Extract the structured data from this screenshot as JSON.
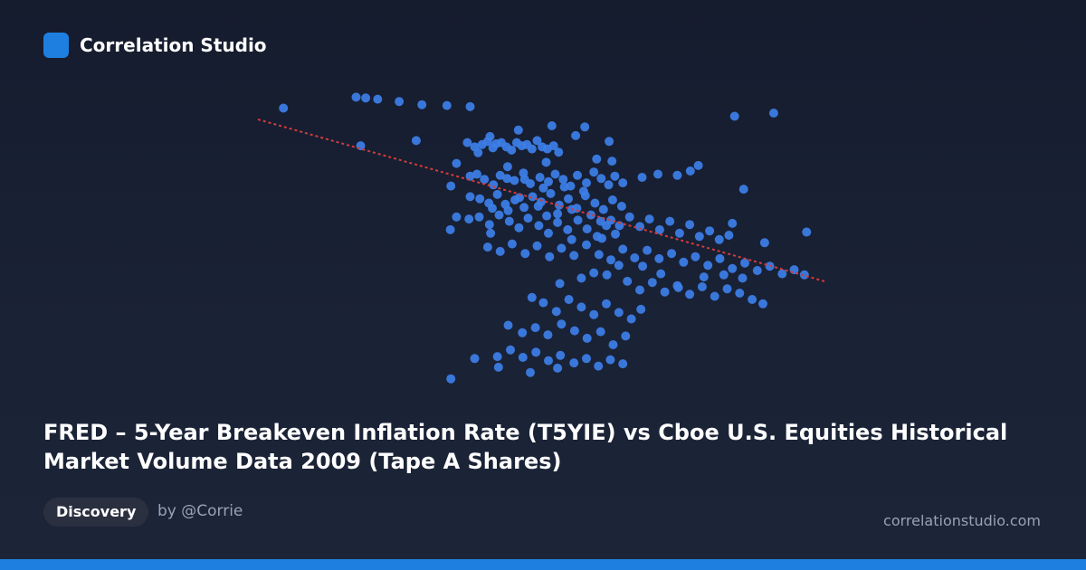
{
  "brand": {
    "name": "Correlation Studio",
    "logo_icon": "rounded-square-logo-icon"
  },
  "title": "FRED – 5-Year Breakeven Inflation Rate (T5YIE) vs Cboe U.S. Equities Historical Market Volume Data 2009 (Tape A Shares)",
  "badge": "Discovery",
  "author": "by @Corrie",
  "site": "correlationstudio.com",
  "colors": {
    "accent": "#1e7fe0",
    "point": "#3d7fe8",
    "trendline": "#d23c3c"
  },
  "chart_data": {
    "type": "scatter",
    "xlabel": "",
    "ylabel": "",
    "grid": false,
    "legend": "none",
    "xlim": [
      0,
      100
    ],
    "ylim": [
      0,
      100
    ],
    "trendline": {
      "style": "dotted",
      "x": [
        0,
        100
      ],
      "y": [
        90.0,
        34.0
      ]
    },
    "points": [
      [
        4.5,
        93.9
      ],
      [
        17.3,
        97.7
      ],
      [
        19.0,
        97.4
      ],
      [
        21.1,
        97.0
      ],
      [
        24.9,
        96.2
      ],
      [
        28.9,
        95.1
      ],
      [
        33.3,
        94.8
      ],
      [
        37.4,
        94.4
      ],
      [
        18.1,
        80.9
      ],
      [
        27.9,
        82.7
      ],
      [
        36.9,
        82.0
      ],
      [
        38.2,
        80.5
      ],
      [
        39.5,
        81.3
      ],
      [
        40.5,
        82.4
      ],
      [
        41.4,
        80.2
      ],
      [
        42.0,
        81.6
      ],
      [
        42.9,
        82.0
      ],
      [
        43.8,
        80.5
      ],
      [
        44.7,
        79.4
      ],
      [
        45.6,
        82.0
      ],
      [
        46.5,
        80.9
      ],
      [
        47.4,
        81.3
      ],
      [
        48.3,
        79.8
      ],
      [
        49.2,
        82.7
      ],
      [
        50.1,
        80.5
      ],
      [
        51.0,
        79.8
      ],
      [
        52.1,
        80.9
      ],
      [
        53.0,
        78.7
      ],
      [
        37.4,
        70.4
      ],
      [
        38.6,
        71.1
      ],
      [
        39.9,
        69.3
      ],
      [
        41.5,
        67.4
      ],
      [
        42.7,
        70.7
      ],
      [
        43.9,
        69.6
      ],
      [
        45.2,
        68.9
      ],
      [
        46.8,
        71.5
      ],
      [
        48.0,
        67.8
      ],
      [
        49.7,
        70.0
      ],
      [
        51.2,
        68.5
      ],
      [
        52.4,
        71.1
      ],
      [
        53.8,
        69.3
      ],
      [
        55.1,
        67.0
      ],
      [
        56.3,
        70.7
      ],
      [
        57.9,
        68.1
      ],
      [
        59.2,
        71.8
      ],
      [
        60.5,
        69.6
      ],
      [
        61.8,
        67.4
      ],
      [
        62.9,
        70.4
      ],
      [
        64.3,
        68.1
      ],
      [
        37.4,
        63.3
      ],
      [
        39.1,
        62.6
      ],
      [
        40.7,
        61.1
      ],
      [
        42.2,
        64.1
      ],
      [
        43.6,
        60.7
      ],
      [
        45.3,
        62.2
      ],
      [
        46.9,
        59.6
      ],
      [
        48.4,
        63.3
      ],
      [
        49.9,
        61.5
      ],
      [
        51.6,
        64.4
      ],
      [
        53.1,
        60.4
      ],
      [
        54.7,
        62.6
      ],
      [
        56.2,
        59.3
      ],
      [
        57.7,
        63.7
      ],
      [
        59.4,
        61.1
      ],
      [
        60.9,
        58.9
      ],
      [
        62.5,
        62.2
      ],
      [
        64.1,
        60.0
      ],
      [
        37.2,
        55.6
      ],
      [
        39.0,
        56.3
      ],
      [
        40.8,
        53.7
      ],
      [
        42.5,
        57.0
      ],
      [
        44.3,
        54.8
      ],
      [
        46.0,
        52.6
      ],
      [
        47.6,
        55.9
      ],
      [
        49.5,
        53.3
      ],
      [
        51.2,
        50.7
      ],
      [
        52.8,
        54.4
      ],
      [
        54.6,
        51.9
      ],
      [
        56.4,
        55.2
      ],
      [
        58.0,
        52.2
      ],
      [
        59.8,
        49.6
      ],
      [
        61.4,
        53.3
      ],
      [
        63.0,
        50.4
      ],
      [
        40.5,
        45.9
      ],
      [
        42.7,
        44.4
      ],
      [
        44.8,
        47.0
      ],
      [
        47.1,
        43.7
      ],
      [
        49.2,
        46.3
      ],
      [
        51.4,
        42.6
      ],
      [
        53.5,
        45.5
      ],
      [
        55.7,
        43.0
      ],
      [
        57.9,
        46.7
      ],
      [
        60.1,
        43.3
      ],
      [
        62.2,
        41.5
      ],
      [
        64.3,
        45.2
      ],
      [
        66.4,
        42.2
      ],
      [
        68.6,
        44.8
      ],
      [
        70.7,
        41.9
      ],
      [
        72.9,
        43.7
      ],
      [
        75.0,
        40.7
      ],
      [
        77.1,
        42.6
      ],
      [
        79.3,
        39.6
      ],
      [
        81.4,
        41.9
      ],
      [
        83.6,
        38.5
      ],
      [
        85.8,
        40.4
      ],
      [
        88.0,
        37.8
      ],
      [
        90.2,
        39.3
      ],
      [
        92.4,
        36.7
      ],
      [
        94.5,
        38.1
      ],
      [
        96.3,
        36.3
      ],
      [
        65.5,
        56.3
      ],
      [
        67.3,
        53.0
      ],
      [
        69.0,
        55.6
      ],
      [
        70.8,
        51.9
      ],
      [
        72.6,
        54.8
      ],
      [
        74.3,
        50.7
      ],
      [
        76.1,
        53.7
      ],
      [
        77.8,
        49.6
      ],
      [
        79.6,
        51.5
      ],
      [
        81.3,
        48.5
      ],
      [
        83.0,
        50.0
      ],
      [
        65.1,
        34.1
      ],
      [
        67.3,
        31.1
      ],
      [
        69.5,
        33.7
      ],
      [
        71.7,
        30.4
      ],
      [
        73.9,
        32.6
      ],
      [
        76.1,
        29.6
      ],
      [
        78.3,
        32.2
      ],
      [
        80.5,
        28.9
      ],
      [
        82.7,
        31.5
      ],
      [
        84.9,
        30.0
      ],
      [
        87.1,
        27.8
      ],
      [
        48.3,
        28.5
      ],
      [
        50.3,
        26.7
      ],
      [
        52.6,
        23.7
      ],
      [
        54.8,
        27.8
      ],
      [
        57.0,
        25.2
      ],
      [
        59.2,
        22.6
      ],
      [
        61.4,
        26.3
      ],
      [
        63.6,
        23.3
      ],
      [
        65.8,
        21.1
      ],
      [
        67.5,
        24.4
      ],
      [
        44.1,
        18.9
      ],
      [
        46.6,
        16.3
      ],
      [
        48.9,
        18.1
      ],
      [
        51.1,
        15.6
      ],
      [
        53.5,
        19.3
      ],
      [
        55.8,
        17.0
      ],
      [
        58.0,
        14.4
      ],
      [
        60.4,
        16.7
      ],
      [
        62.6,
        12.2
      ],
      [
        64.8,
        15.2
      ],
      [
        42.2,
        8.1
      ],
      [
        44.5,
        10.4
      ],
      [
        46.7,
        7.8
      ],
      [
        49.0,
        9.6
      ],
      [
        51.2,
        6.7
      ],
      [
        53.3,
        8.5
      ],
      [
        55.7,
        5.9
      ],
      [
        57.9,
        7.4
      ],
      [
        60.0,
        4.8
      ],
      [
        62.1,
        7.0
      ],
      [
        64.3,
        5.6
      ],
      [
        34.0,
        0.4
      ],
      [
        38.2,
        7.4
      ],
      [
        42.4,
        4.4
      ],
      [
        48.0,
        2.6
      ],
      [
        52.8,
        4.1
      ],
      [
        33.9,
        51.9
      ],
      [
        35.0,
        56.3
      ],
      [
        41.0,
        50.7
      ],
      [
        34.0,
        67.0
      ],
      [
        35.0,
        74.8
      ],
      [
        84.0,
        91.1
      ],
      [
        90.9,
        92.2
      ],
      [
        85.6,
        65.9
      ],
      [
        89.3,
        47.4
      ],
      [
        96.7,
        51.1
      ],
      [
        83.6,
        54.1
      ],
      [
        89.0,
        26.3
      ],
      [
        77.6,
        74.1
      ],
      [
        76.2,
        72.2
      ],
      [
        73.9,
        70.7
      ],
      [
        70.5,
        71.1
      ],
      [
        67.7,
        70.0
      ],
      [
        59.7,
        76.3
      ],
      [
        61.9,
        82.4
      ],
      [
        38.8,
        78.5
      ],
      [
        40.9,
        84.1
      ],
      [
        45.9,
        86.3
      ],
      [
        51.8,
        87.8
      ],
      [
        56.0,
        84.4
      ],
      [
        57.6,
        87.4
      ],
      [
        62.4,
        75.6
      ],
      [
        50.8,
        75.2
      ],
      [
        44.0,
        73.7
      ],
      [
        47.0,
        69.3
      ],
      [
        46.1,
        63.0
      ],
      [
        49.4,
        60.0
      ],
      [
        55.3,
        58.9
      ],
      [
        58.7,
        57.0
      ],
      [
        60.4,
        54.8
      ],
      [
        62.2,
        55.2
      ],
      [
        63.7,
        53.3
      ],
      [
        50.3,
        66.3
      ],
      [
        54.0,
        66.7
      ],
      [
        57.4,
        65.2
      ],
      [
        41.3,
        59.3
      ],
      [
        44.1,
        58.5
      ],
      [
        50.9,
        56.7
      ],
      [
        52.8,
        57.4
      ],
      [
        55.3,
        48.5
      ],
      [
        60.6,
        48.9
      ],
      [
        63.6,
        39.6
      ],
      [
        67.8,
        39.3
      ],
      [
        71.0,
        36.7
      ],
      [
        74.1,
        31.9
      ],
      [
        78.6,
        35.6
      ],
      [
        82.1,
        36.3
      ],
      [
        85.4,
        35.2
      ],
      [
        53.2,
        33.3
      ],
      [
        57.0,
        35.2
      ],
      [
        59.2,
        37.0
      ],
      [
        61.5,
        36.3
      ]
    ]
  }
}
